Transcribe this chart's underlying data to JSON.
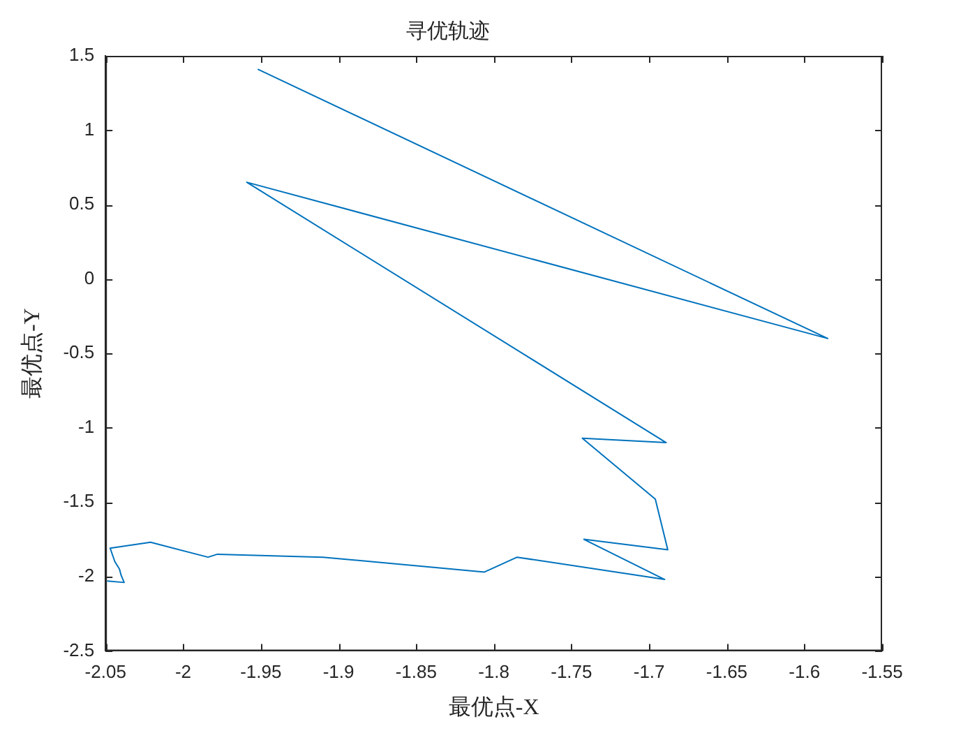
{
  "chart_data": {
    "type": "line",
    "title": "寻优轨迹",
    "xlabel": "最优点-X",
    "ylabel": "最优点-Y",
    "x": [
      -1.952,
      -1.585,
      -1.959,
      -1.689,
      -1.743,
      -1.696,
      -1.688,
      -1.742,
      -1.69,
      -1.785,
      -1.806,
      -1.91,
      -1.978,
      -1.984,
      -2.021,
      -2.047,
      -2.046,
      -2.044,
      -2.041,
      -2.04,
      -2.038,
      -2.049
    ],
    "series": [
      {
        "color": "#0072bd",
        "values": [
          1.41,
          -0.4,
          0.65,
          -1.1,
          -1.07,
          -1.48,
          -1.82,
          -1.75,
          -2.02,
          -1.87,
          -1.97,
          -1.87,
          -1.85,
          -1.87,
          -1.77,
          -1.81,
          -1.84,
          -1.9,
          -1.95,
          -1.99,
          -2.04,
          -2.03
        ]
      }
    ],
    "xlim": [
      -2.05,
      -1.55
    ],
    "xticks": [
      -2.05,
      -2,
      -1.95,
      -1.9,
      -1.85,
      -1.8,
      -1.75,
      -1.7,
      -1.65,
      -1.6,
      -1.55
    ],
    "ylim": [
      -2.5,
      1.5
    ],
    "yticks": [
      -2.5,
      -2,
      -1.5,
      -1,
      -0.5,
      0,
      0.5,
      1,
      1.5
    ],
    "marker": "none",
    "line_style": "solid"
  }
}
